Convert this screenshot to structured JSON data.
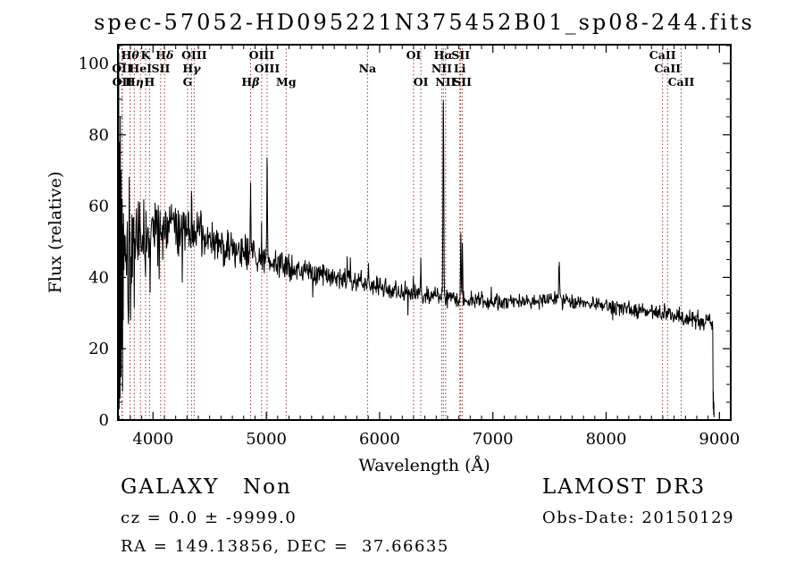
{
  "title": "spec-57052-HD095221N375452B01_sp08-244.fits",
  "footer": {
    "classification": "GALAXY",
    "subclass": "Non",
    "cz_line": "cz = 0.0 ± -9999.0",
    "radec_line": "RA = 149.13856, DEC =  37.66635",
    "survey": "LAMOST DR3",
    "obs_date": "Obs-Date: 20150129"
  },
  "chart_data": {
    "type": "line",
    "title": "spec-57052-HD095221N375452B01_sp08-244.fits",
    "xlabel": "Wavelength (Å)",
    "ylabel": "Flux (relative)",
    "xlim": [
      3690,
      9100
    ],
    "ylim": [
      0,
      105
    ],
    "xticks": [
      4000,
      5000,
      6000,
      7000,
      8000,
      9000
    ],
    "yticks": [
      0,
      20,
      40,
      60,
      80,
      100
    ],
    "x_minor_step": 100,
    "y_minor_step": 5,
    "grid": false,
    "trace_color": "#000000",
    "line_marker_color": "#993430",
    "spectral_lines": [
      {
        "label": "OII",
        "wavelength": 3726,
        "row": 2
      },
      {
        "label": "OII",
        "wavelength": 3729,
        "row": 3
      },
      {
        "label": "Hθ",
        "wavelength": 3798,
        "row": 1
      },
      {
        "label": "Hη",
        "wavelength": 3835,
        "row": 3
      },
      {
        "label": "HeI",
        "wavelength": 3889,
        "row": 2
      },
      {
        "label": "K",
        "wavelength": 3934,
        "row": 1
      },
      {
        "label": "H",
        "wavelength": 3969,
        "row": 3
      },
      {
        "label": "SII",
        "wavelength": 4068,
        "row": 2
      },
      {
        "label": "Hδ",
        "wavelength": 4102,
        "row": 1
      },
      {
        "label": "G",
        "wavelength": 4305,
        "row": 3
      },
      {
        "label": "Hγ",
        "wavelength": 4340,
        "row": 2
      },
      {
        "label": "OIII",
        "wavelength": 4363,
        "row": 1
      },
      {
        "label": "Hβ",
        "wavelength": 4861,
        "row": 3
      },
      {
        "label": "OIII",
        "wavelength": 4959,
        "row": 1
      },
      {
        "label": "OIII",
        "wavelength": 5007,
        "row": 2
      },
      {
        "label": "Mg",
        "wavelength": 5175,
        "row": 3
      },
      {
        "label": "Na",
        "wavelength": 5893,
        "row": 2
      },
      {
        "label": "OI",
        "wavelength": 6300,
        "row": 1
      },
      {
        "label": "OI",
        "wavelength": 6364,
        "row": 3
      },
      {
        "label": "NII",
        "wavelength": 6548,
        "row": 2
      },
      {
        "label": "Hα",
        "wavelength": 6563,
        "row": 1
      },
      {
        "label": "NII",
        "wavelength": 6583,
        "row": 3
      },
      {
        "label": "Li",
        "wavelength": 6708,
        "row": 2
      },
      {
        "label": "SII",
        "wavelength": 6716,
        "row": 1
      },
      {
        "label": "SII",
        "wavelength": 6731,
        "row": 3
      },
      {
        "label": "CaII",
        "wavelength": 8498,
        "row": 1
      },
      {
        "label": "CaII",
        "wavelength": 8542,
        "row": 2
      },
      {
        "label": "CaII",
        "wavelength": 8662,
        "row": 3
      }
    ],
    "continuum": [
      [
        3690,
        48
      ],
      [
        3760,
        50
      ],
      [
        3850,
        49
      ],
      [
        3950,
        51
      ],
      [
        4050,
        53
      ],
      [
        4120,
        55
      ],
      [
        4200,
        53
      ],
      [
        4300,
        54
      ],
      [
        4400,
        52
      ],
      [
        4500,
        50
      ],
      [
        4650,
        48.5
      ],
      [
        4800,
        46.5
      ],
      [
        4950,
        45
      ],
      [
        5100,
        43.5
      ],
      [
        5250,
        42.5
      ],
      [
        5400,
        41.5
      ],
      [
        5550,
        40.5
      ],
      [
        5700,
        39.5
      ],
      [
        5850,
        38.5
      ],
      [
        6000,
        37
      ],
      [
        6150,
        36.5
      ],
      [
        6300,
        35.5
      ],
      [
        6450,
        35
      ],
      [
        6600,
        34
      ],
      [
        6750,
        34
      ],
      [
        6900,
        33.5
      ],
      [
        7050,
        33
      ],
      [
        7200,
        33.5
      ],
      [
        7350,
        33
      ],
      [
        7500,
        33.5
      ],
      [
        7600,
        34
      ],
      [
        7700,
        33
      ],
      [
        7850,
        32.5
      ],
      [
        8000,
        32
      ],
      [
        8150,
        31.5
      ],
      [
        8300,
        30.5
      ],
      [
        8450,
        30
      ],
      [
        8600,
        29.5
      ],
      [
        8750,
        28.5
      ],
      [
        8940,
        27.5
      ]
    ],
    "noise_profile": [
      [
        3754,
        22
      ],
      [
        3800,
        14
      ],
      [
        3850,
        11
      ],
      [
        3900,
        9
      ],
      [
        3950,
        8
      ],
      [
        4000,
        7
      ],
      [
        4100,
        5.5
      ],
      [
        4200,
        5
      ],
      [
        4400,
        4.5
      ],
      [
        4600,
        3.8
      ],
      [
        4800,
        3.2
      ],
      [
        5000,
        3
      ],
      [
        5200,
        2.6
      ],
      [
        5400,
        2.4
      ],
      [
        5600,
        2.2
      ],
      [
        5800,
        2.1
      ],
      [
        6000,
        2
      ],
      [
        6300,
        1.9
      ],
      [
        6600,
        1.8
      ],
      [
        7000,
        1.6
      ],
      [
        7400,
        1.5
      ],
      [
        7800,
        1.5
      ],
      [
        8200,
        1.6
      ],
      [
        8600,
        1.8
      ],
      [
        8940,
        2
      ]
    ],
    "emission_features": [
      {
        "wavelength": 4340,
        "peak": 10,
        "width": 4
      },
      {
        "wavelength": 4861,
        "peak": 20,
        "width": 4
      },
      {
        "wavelength": 4959,
        "peak": 7,
        "width": 4
      },
      {
        "wavelength": 5007,
        "peak": 28,
        "width": 4
      },
      {
        "wavelength": 6300,
        "peak": 4,
        "width": 4
      },
      {
        "wavelength": 6364,
        "peak": 9,
        "width": 4
      },
      {
        "wavelength": 6563,
        "peak": 56,
        "width": 5
      },
      {
        "wavelength": 6717,
        "peak": 17,
        "width": 4
      },
      {
        "wavelength": 6731,
        "peak": 14,
        "width": 4
      },
      {
        "wavelength": 7585,
        "peak": 10,
        "width": 6
      }
    ],
    "blue_end_points": [
      [
        3692,
        40
      ],
      [
        3694,
        95
      ],
      [
        3696,
        10
      ],
      [
        3697,
        103
      ],
      [
        3699,
        45
      ],
      [
        3701,
        3
      ],
      [
        3703,
        78
      ],
      [
        3705,
        25
      ],
      [
        3707,
        60
      ],
      [
        3709,
        6
      ],
      [
        3711,
        85
      ],
      [
        3713,
        30
      ],
      [
        3715,
        55
      ],
      [
        3717,
        12
      ],
      [
        3719,
        70
      ],
      [
        3721,
        35
      ],
      [
        3723,
        50
      ],
      [
        3725,
        20
      ],
      [
        3727,
        62
      ],
      [
        3729,
        40
      ],
      [
        3731,
        8
      ],
      [
        3733,
        55
      ],
      [
        3735,
        45
      ],
      [
        3737,
        28
      ],
      [
        3739,
        58
      ],
      [
        3743,
        42
      ],
      [
        3747,
        52
      ],
      [
        3751,
        46
      ]
    ],
    "end_segment": [
      [
        8941,
        26
      ],
      [
        8943,
        14
      ],
      [
        8945,
        3
      ],
      [
        8947,
        8
      ],
      [
        8949,
        1.5
      ],
      [
        8951,
        5
      ],
      [
        8953,
        0.8
      ]
    ],
    "noise_seed": 42
  }
}
